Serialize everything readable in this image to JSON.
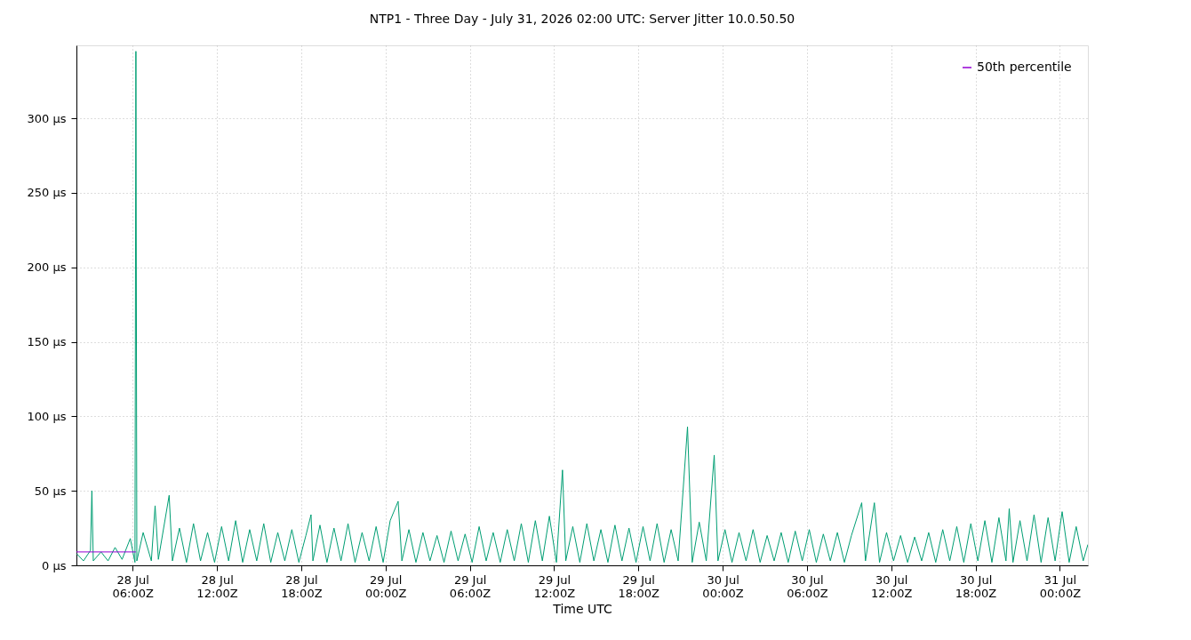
{
  "chart_data": {
    "type": "line",
    "title": "NTP1 - Three Day - July 31, 2026 02:00 UTC: Server Jitter 10.0.50.50",
    "xlabel": "Time UTC",
    "x": [
      "2026-07-28T02:00",
      "2026-07-28T02:30",
      "2026-07-28T03:00",
      "2026-07-28T03:06",
      "2026-07-28T03:12",
      "2026-07-28T03:45",
      "2026-07-28T04:15",
      "2026-07-28T04:45",
      "2026-07-28T05:15",
      "2026-07-28T05:50",
      "2026-07-28T06:10",
      "2026-07-28T06:14",
      "2026-07-28T06:18",
      "2026-07-28T06:45",
      "2026-07-28T07:20",
      "2026-07-28T07:36",
      "2026-07-28T07:50",
      "2026-07-28T08:36",
      "2026-07-28T08:50",
      "2026-07-28T09:20",
      "2026-07-28T09:50",
      "2026-07-28T10:20",
      "2026-07-28T10:50",
      "2026-07-28T11:20",
      "2026-07-28T11:50",
      "2026-07-28T12:20",
      "2026-07-28T12:50",
      "2026-07-28T13:20",
      "2026-07-28T13:50",
      "2026-07-28T14:20",
      "2026-07-28T14:50",
      "2026-07-28T15:20",
      "2026-07-28T15:50",
      "2026-07-28T16:20",
      "2026-07-28T16:50",
      "2026-07-28T17:20",
      "2026-07-28T17:50",
      "2026-07-28T18:20",
      "2026-07-28T18:42",
      "2026-07-28T18:50",
      "2026-07-28T19:20",
      "2026-07-28T19:50",
      "2026-07-28T20:20",
      "2026-07-28T20:50",
      "2026-07-28T21:20",
      "2026-07-28T21:50",
      "2026-07-28T22:20",
      "2026-07-28T22:50",
      "2026-07-28T23:20",
      "2026-07-28T23:50",
      "2026-07-29T00:20",
      "2026-07-29T00:54",
      "2026-07-29T01:10",
      "2026-07-29T01:40",
      "2026-07-29T02:10",
      "2026-07-29T02:40",
      "2026-07-29T03:10",
      "2026-07-29T03:40",
      "2026-07-29T04:10",
      "2026-07-29T04:40",
      "2026-07-29T05:10",
      "2026-07-29T05:40",
      "2026-07-29T06:10",
      "2026-07-29T06:40",
      "2026-07-29T07:10",
      "2026-07-29T07:40",
      "2026-07-29T08:10",
      "2026-07-29T08:40",
      "2026-07-29T09:10",
      "2026-07-29T09:40",
      "2026-07-29T10:10",
      "2026-07-29T10:40",
      "2026-07-29T11:10",
      "2026-07-29T11:40",
      "2026-07-29T12:10",
      "2026-07-29T12:36",
      "2026-07-29T12:50",
      "2026-07-29T13:20",
      "2026-07-29T13:50",
      "2026-07-29T14:20",
      "2026-07-29T14:50",
      "2026-07-29T15:20",
      "2026-07-29T15:50",
      "2026-07-29T16:20",
      "2026-07-29T16:50",
      "2026-07-29T17:20",
      "2026-07-29T17:50",
      "2026-07-29T18:20",
      "2026-07-29T18:50",
      "2026-07-29T19:20",
      "2026-07-29T19:50",
      "2026-07-29T20:20",
      "2026-07-29T20:50",
      "2026-07-29T21:30",
      "2026-07-29T21:50",
      "2026-07-29T22:20",
      "2026-07-29T22:50",
      "2026-07-29T23:24",
      "2026-07-29T23:40",
      "2026-07-30T00:10",
      "2026-07-30T00:40",
      "2026-07-30T01:10",
      "2026-07-30T01:40",
      "2026-07-30T02:10",
      "2026-07-30T02:40",
      "2026-07-30T03:10",
      "2026-07-30T03:40",
      "2026-07-30T04:10",
      "2026-07-30T04:40",
      "2026-07-30T05:10",
      "2026-07-30T05:40",
      "2026-07-30T06:10",
      "2026-07-30T06:40",
      "2026-07-30T07:10",
      "2026-07-30T07:40",
      "2026-07-30T08:10",
      "2026-07-30T08:40",
      "2026-07-30T09:10",
      "2026-07-30T09:54",
      "2026-07-30T10:10",
      "2026-07-30T10:48",
      "2026-07-30T11:10",
      "2026-07-30T11:40",
      "2026-07-30T12:10",
      "2026-07-30T12:40",
      "2026-07-30T13:10",
      "2026-07-30T13:40",
      "2026-07-30T14:10",
      "2026-07-30T14:40",
      "2026-07-30T15:10",
      "2026-07-30T15:40",
      "2026-07-30T16:10",
      "2026-07-30T16:40",
      "2026-07-30T17:10",
      "2026-07-30T17:40",
      "2026-07-30T18:10",
      "2026-07-30T18:40",
      "2026-07-30T19:10",
      "2026-07-30T19:40",
      "2026-07-30T20:10",
      "2026-07-30T20:24",
      "2026-07-30T20:40",
      "2026-07-30T21:10",
      "2026-07-30T21:40",
      "2026-07-30T22:10",
      "2026-07-30T22:40",
      "2026-07-30T23:10",
      "2026-07-30T23:40",
      "2026-07-31T00:10",
      "2026-07-31T00:40",
      "2026-07-31T01:10",
      "2026-07-31T01:40",
      "2026-07-31T02:00"
    ],
    "series": [
      {
        "color": "#009e73",
        "values": [
          8,
          3,
          10,
          50,
          3,
          9,
          3,
          12,
          4,
          18,
          2,
          345,
          3,
          22,
          3,
          40,
          4,
          47,
          3,
          25,
          2,
          28,
          3,
          22,
          2,
          26,
          3,
          30,
          2,
          24,
          3,
          28,
          2,
          22,
          3,
          24,
          2,
          20,
          34,
          3,
          27,
          2,
          25,
          3,
          28,
          2,
          22,
          3,
          26,
          2,
          30,
          43,
          3,
          24,
          2,
          22,
          3,
          20,
          2,
          23,
          3,
          21,
          2,
          26,
          3,
          22,
          2,
          24,
          3,
          28,
          2,
          30,
          3,
          33,
          2,
          64,
          3,
          26,
          2,
          28,
          3,
          24,
          2,
          27,
          3,
          25,
          2,
          26,
          3,
          28,
          2,
          24,
          3,
          93,
          2,
          29,
          3,
          74,
          3,
          24,
          2,
          22,
          3,
          24,
          2,
          20,
          3,
          22,
          2,
          23,
          3,
          24,
          2,
          21,
          3,
          22,
          2,
          20,
          42,
          3,
          42,
          2,
          22,
          3,
          20,
          2,
          19,
          3,
          22,
          2,
          24,
          3,
          26,
          2,
          28,
          3,
          30,
          2,
          32,
          3,
          38,
          2,
          30,
          3,
          34,
          2,
          32,
          3,
          36,
          2,
          26,
          3,
          14
        ]
      },
      {
        "name": "50th percentile",
        "color": "#9400d3",
        "x": [
          "2026-07-28T02:00",
          "2026-07-28T06:14"
        ],
        "values": [
          9,
          9
        ]
      }
    ],
    "xlim": [
      "2026-07-28T02:00",
      "2026-07-31T02:00"
    ],
    "xticks": [
      {
        "value": "2026-07-28T06:00",
        "label": "28 Jul\n06:00Z"
      },
      {
        "value": "2026-07-28T12:00",
        "label": "28 Jul\n12:00Z"
      },
      {
        "value": "2026-07-28T18:00",
        "label": "28 Jul\n18:00Z"
      },
      {
        "value": "2026-07-29T00:00",
        "label": "29 Jul\n00:00Z"
      },
      {
        "value": "2026-07-29T06:00",
        "label": "29 Jul\n06:00Z"
      },
      {
        "value": "2026-07-29T12:00",
        "label": "29 Jul\n12:00Z"
      },
      {
        "value": "2026-07-29T18:00",
        "label": "29 Jul\n18:00Z"
      },
      {
        "value": "2026-07-30T00:00",
        "label": "30 Jul\n00:00Z"
      },
      {
        "value": "2026-07-30T06:00",
        "label": "30 Jul\n06:00Z"
      },
      {
        "value": "2026-07-30T12:00",
        "label": "30 Jul\n12:00Z"
      },
      {
        "value": "2026-07-30T18:00",
        "label": "30 Jul\n18:00Z"
      },
      {
        "value": "2026-07-31T00:00",
        "label": "31 Jul\n00:00Z"
      }
    ],
    "ylim": [
      0,
      349
    ],
    "yticks": [
      {
        "value": 0,
        "label": "0 µs"
      },
      {
        "value": 50,
        "label": "50 µs"
      },
      {
        "value": 100,
        "label": "100 µs"
      },
      {
        "value": 150,
        "label": "150 µs"
      },
      {
        "value": 200,
        "label": "200 µs"
      },
      {
        "value": 250,
        "label": "250 µs"
      },
      {
        "value": 300,
        "label": "300 µs"
      }
    ],
    "grid": true,
    "legend": "top right",
    "marker": "none",
    "line_style": "solid"
  }
}
